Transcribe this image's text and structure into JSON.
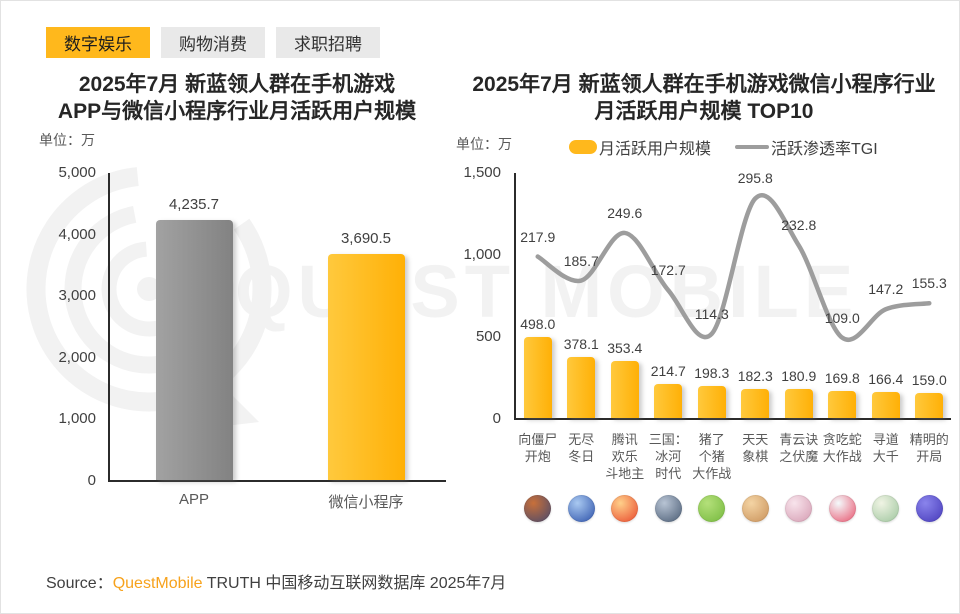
{
  "tabs": [
    {
      "name": "tab-digital-entertainment",
      "label": "数字娱乐",
      "active": true
    },
    {
      "name": "tab-shopping-consumption",
      "label": "购物消费",
      "active": false
    },
    {
      "name": "tab-job-recruiting",
      "label": "求职招聘",
      "active": false
    }
  ],
  "watermark": {
    "brand": "QUEST MOBILE"
  },
  "footer": {
    "source_label": "Source：",
    "brand": "QuestMobile",
    "suffix": " TRUTH 中国移动互联网数据库 2025年7月"
  },
  "colors": {
    "accent_yellow": "#ffb81c",
    "bar_yellow_light": "#ffc93d",
    "bar_yellow_dark": "#ffb006",
    "bar_gray_light": "#a2a2a2",
    "bar_gray_dark": "#828282",
    "line_gray": "#9d9d9d"
  },
  "chart_data": [
    {
      "type": "bar",
      "title_lines": [
        "2025年7月 新蓝领人群在手机游戏",
        "APP与微信小程序行业月活跃用户规模"
      ],
      "unit": "单位：万",
      "categories": [
        "APP",
        "微信小程序"
      ],
      "values": [
        4235.7,
        3690.5
      ],
      "value_labels": [
        "4,235.7",
        "3,690.5"
      ],
      "bar_styles": [
        "gray",
        "yellow"
      ],
      "ylim": [
        0,
        5000
      ],
      "ytick_labels": [
        "0",
        "1,000",
        "2,000",
        "3,000",
        "4,000",
        "5,000"
      ],
      "grid": false,
      "legend_position": "none"
    },
    {
      "type": "bar+line",
      "title_lines": [
        "2025年7月 新蓝领人群在手机游戏微信小程序行业",
        "月活跃用户规模 TOP10"
      ],
      "unit": "单位：万",
      "legend": [
        {
          "label": "月活跃用户规模",
          "marker": "bar"
        },
        {
          "label": "活跃渗透率TGI",
          "marker": "line"
        }
      ],
      "categories": [
        "向僵尸开炮",
        "无尽冬日",
        "腾讯欢乐斗地主",
        "三国：冰河时代",
        "猪了个猪大作战",
        "天天象棋",
        "青云诀之伏魔",
        "贪吃蛇大作战",
        "寻道大千",
        "精明的开局"
      ],
      "category_label_lines": [
        [
          "向僵尸",
          "开炮"
        ],
        [
          "无尽",
          "冬日"
        ],
        [
          "腾讯",
          "欢乐",
          "斗地主"
        ],
        [
          "三国：",
          "冰河",
          "时代"
        ],
        [
          "猪了",
          "个猪",
          "大作战"
        ],
        [
          "天天",
          "象棋"
        ],
        [
          "青云诀",
          "之伏魔"
        ],
        [
          "贪吃蛇",
          "大作战"
        ],
        [
          "寻道",
          "大千"
        ],
        [
          "精明的",
          "开局"
        ]
      ],
      "series": [
        {
          "name": "月活跃用户规模",
          "type": "bar",
          "values": [
            498.0,
            378.1,
            353.4,
            214.7,
            198.3,
            182.3,
            180.9,
            169.8,
            166.4,
            159.0
          ],
          "value_labels": [
            "498.0",
            "378.1",
            "353.4",
            "214.7",
            "198.3",
            "182.3",
            "180.9",
            "169.8",
            "166.4",
            "159.0"
          ]
        },
        {
          "name": "活跃渗透率TGI",
          "type": "line",
          "values": [
            217.9,
            185.7,
            249.6,
            172.7,
            114.3,
            295.8,
            232.8,
            109.0,
            147.2,
            155.3
          ],
          "value_labels": [
            "217.9",
            "185.7",
            "249.6",
            "172.7",
            "114.3",
            "295.8",
            "232.8",
            "109.0",
            "147.2",
            "155.3"
          ]
        }
      ],
      "ylim": [
        0,
        1500
      ],
      "ytick_labels": [
        "0",
        "500",
        "1,000",
        "1,500"
      ],
      "grid": false,
      "legend_position": "top",
      "icons": [
        {
          "name": "game-icon-xiang-jiangshi-kaipao",
          "c1": "#c8703a",
          "c2": "#46486e"
        },
        {
          "name": "game-icon-wujin-dongri",
          "c1": "#a9c9f1",
          "c2": "#2a4fa8"
        },
        {
          "name": "game-icon-huanle-doudizhu",
          "c1": "#ffd08a",
          "c2": "#e8452a"
        },
        {
          "name": "game-icon-sanguo-binghe-shidai",
          "c1": "#b8c4d4",
          "c2": "#485a72"
        },
        {
          "name": "game-icon-zhule-gezhu-dazuozhan",
          "c1": "#b4e07a",
          "c2": "#74b83c"
        },
        {
          "name": "game-icon-tiantian-xiangqi",
          "c1": "#f4d4a4",
          "c2": "#c89058"
        },
        {
          "name": "game-icon-qingyunjue-zhifumo",
          "c1": "#f8e4ec",
          "c2": "#d49ab0"
        },
        {
          "name": "game-icon-tanchishe-dazuozhan",
          "c1": "#f4fafc",
          "c2": "#e8506a"
        },
        {
          "name": "game-icon-xundao-daqian",
          "c1": "#f0f4e4",
          "c2": "#9cc49c"
        },
        {
          "name": "game-icon-jingming-de-kaiju",
          "c1": "#8a84ec",
          "c2": "#4438b8"
        }
      ]
    }
  ]
}
